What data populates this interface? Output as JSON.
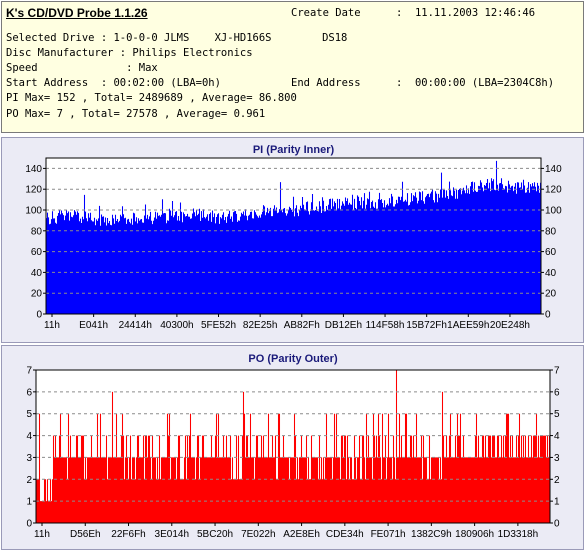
{
  "app": {
    "title": "K's CD/DVD Probe 1.1.26"
  },
  "info": {
    "create_date_label": "Create Date",
    "create_date_value": ":  11.11.2003 12:46:46",
    "selected_drive": "Selected Drive : 1-0-0-0 JLMS    XJ-HD166S        DS18",
    "disc_manufacturer": "Disc Manufacturer : Philips Electronics",
    "speed": "Speed              : Max",
    "start_address": "Start Address  : 00:02:00 (LBA=0h)",
    "end_address_label": "End Address",
    "end_address_value": ":  00:00:00 (LBA=2304C8h)",
    "pi_summary": "PI Max= 152 , Total= 2489689 , Average= 86.800",
    "po_summary": "PO Max= 7 , Total= 27578 , Average= 0.961"
  },
  "chart_data": [
    {
      "type": "bar",
      "title": "PI (Parity Inner)",
      "x_tick_labels": [
        "11h",
        "E041h",
        "24414h",
        "40300h",
        "5FE52h",
        "82E25h",
        "AB82Fh",
        "DB12Eh",
        "114F58h",
        "15B72Fh",
        "1AEE59h",
        "20E248h"
      ],
      "y_ticks": [
        0,
        20,
        40,
        60,
        80,
        100,
        120,
        140
      ],
      "ylim": [
        0,
        150
      ],
      "grid": true,
      "fill_color": "#0000ff",
      "profile_x": [
        0,
        0.05,
        0.1,
        0.2,
        0.3,
        0.35,
        0.4,
        0.45,
        0.5,
        0.55,
        0.6,
        0.65,
        0.7,
        0.75,
        0.8,
        0.85,
        0.88,
        0.92,
        0.95,
        1.0
      ],
      "profile_y": [
        92,
        95,
        90,
        92,
        95,
        93,
        95,
        99,
        100,
        103,
        106,
        107,
        109,
        111,
        114,
        119,
        124,
        124,
        121,
        120
      ],
      "noise": 11,
      "spike_max": 152
    },
    {
      "type": "bar",
      "title": "PO (Parity Outer)",
      "x_tick_labels": [
        "11h",
        "D56Eh",
        "22F6Fh",
        "3E014h",
        "5BC20h",
        "7E022h",
        "A2E8Eh",
        "CDE34h",
        "FE071h",
        "1382C9h",
        "180906h",
        "1D3318h"
      ],
      "y_ticks": [
        0,
        1,
        2,
        3,
        4,
        5,
        6,
        7
      ],
      "ylim": [
        0,
        7
      ],
      "grid": true,
      "fill_color": "#ff0000",
      "baseline": 2,
      "typical": 3,
      "spike_max": 7
    }
  ]
}
